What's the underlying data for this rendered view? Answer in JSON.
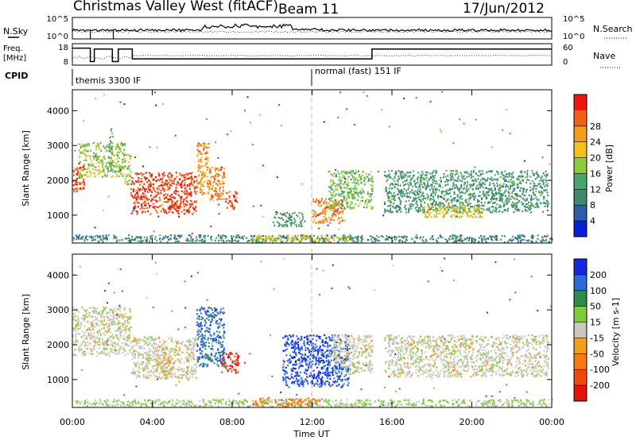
{
  "header": {
    "title": "Christmas Valley West (fitACF)",
    "beam": "Beam 11",
    "date": "17/Jun/2012"
  },
  "noise_panel": {
    "left_label": "N.Sky",
    "right_label": "N.Search",
    "left_ticks": [
      "10^5",
      "10^0"
    ],
    "right_ticks": [
      "10^5",
      "10^0"
    ]
  },
  "freq_panel": {
    "left_label_1": "Freq.",
    "left_label_2": "[MHz]",
    "right_label": "Nave",
    "left_ticks": [
      "18",
      "8"
    ],
    "right_ticks": [
      "60",
      "0"
    ],
    "freq_segments": [
      {
        "start_h": 0.0,
        "end_h": 0.9,
        "mhz": 16.5
      },
      {
        "start_h": 0.9,
        "end_h": 1.1,
        "mhz": 9.0
      },
      {
        "start_h": 1.1,
        "end_h": 2.0,
        "mhz": 16.0
      },
      {
        "start_h": 2.0,
        "end_h": 2.3,
        "mhz": 9.0
      },
      {
        "start_h": 2.3,
        "end_h": 3.0,
        "mhz": 16.0
      },
      {
        "start_h": 3.0,
        "end_h": 15.0,
        "mhz": 10.5
      },
      {
        "start_h": 15.0,
        "end_h": 24.0,
        "mhz": 16.0
      }
    ]
  },
  "cpid": {
    "label": "CPID",
    "segments": [
      {
        "start_h": 0.0,
        "end_h": 12.0,
        "text": "themis 3300 IF"
      },
      {
        "start_h": 12.0,
        "end_h": 24.0,
        "text": "normal (fast) 151 IF"
      }
    ]
  },
  "time_axis": {
    "label": "Time UT",
    "ticks": [
      "00:00",
      "04:00",
      "08:00",
      "12:00",
      "16:00",
      "20:00",
      "00:00"
    ],
    "range_hours": [
      0,
      24
    ]
  },
  "colors": {
    "power_scale": [
      "#0a1fd8",
      "#2a5ea8",
      "#3f8a6e",
      "#4aa56a",
      "#8ccc3a",
      "#f2c21a",
      "#f59a1a",
      "#f26014",
      "#e8190f"
    ],
    "velocity_scale": [
      "#1428e0",
      "#2c6ad8",
      "#2d8c4a",
      "#7ccc3c",
      "#c8c8c0",
      "#f0a01e",
      "#f57a16",
      "#f04a10",
      "#e0140e"
    ]
  },
  "chart_data": [
    {
      "type": "heatmap",
      "name": "power",
      "ylabel": "Slant Range [km]",
      "xlabel": "",
      "x_range_hours": [
        0,
        24
      ],
      "ylim": [
        200,
        4600
      ],
      "yticks": [
        1000,
        2000,
        3000,
        4000
      ],
      "colorbar": {
        "label": "Power [dB]",
        "ticks": [
          4,
          8,
          12,
          16,
          20,
          24,
          28
        ],
        "range": [
          0,
          32
        ]
      },
      "regions": [
        {
          "t0": 0.0,
          "t1": 0.6,
          "r0": 1700,
          "r1": 2500,
          "level": 30
        },
        {
          "t0": 0.3,
          "t1": 2.6,
          "r0": 2100,
          "r1": 3100,
          "level": 16
        },
        {
          "t0": 2.6,
          "t1": 2.9,
          "r0": 1900,
          "r1": 2800,
          "level": 16
        },
        {
          "t0": 1.8,
          "t1": 2.0,
          "r0": 2400,
          "r1": 3500,
          "level": 14
        },
        {
          "t0": 2.9,
          "t1": 6.2,
          "r0": 1050,
          "r1": 2250,
          "level": 30
        },
        {
          "t0": 6.2,
          "t1": 6.8,
          "r0": 1600,
          "r1": 3100,
          "level": 24
        },
        {
          "t0": 6.8,
          "t1": 7.6,
          "r0": 1400,
          "r1": 2400,
          "level": 26
        },
        {
          "t0": 7.6,
          "t1": 8.2,
          "r0": 1200,
          "r1": 1700,
          "level": 30
        },
        {
          "t0": 10.0,
          "t1": 11.6,
          "r0": 700,
          "r1": 1100,
          "level": 10
        },
        {
          "t0": 12.0,
          "t1": 13.6,
          "r0": 800,
          "r1": 1500,
          "level": 26
        },
        {
          "t0": 12.8,
          "t1": 15.0,
          "r0": 1200,
          "r1": 2300,
          "level": 14
        },
        {
          "t0": 15.6,
          "t1": 23.8,
          "r0": 1100,
          "r1": 2300,
          "level": 10
        },
        {
          "t0": 17.5,
          "t1": 20.5,
          "r0": 950,
          "r1": 1300,
          "level": 20
        },
        {
          "t0": 0.0,
          "t1": 24.0,
          "r0": 250,
          "r1": 450,
          "level": 8
        },
        {
          "t0": 9.0,
          "t1": 14.0,
          "r0": 250,
          "r1": 450,
          "level": 20
        }
      ]
    },
    {
      "type": "heatmap",
      "name": "velocity",
      "ylabel": "Slant Range [km]",
      "xlabel": "Time UT",
      "x_range_hours": [
        0,
        24
      ],
      "ylim": [
        200,
        4600
      ],
      "yticks": [
        1000,
        2000,
        3000,
        4000
      ],
      "colorbar": {
        "label": "Velocity [m s-1]",
        "ticks": [
          200,
          100,
          50,
          15,
          -15,
          -50,
          -100,
          -200
        ],
        "range": [
          -250,
          250
        ]
      },
      "regions": [
        {
          "t0": 0.0,
          "t1": 2.9,
          "r0": 1700,
          "r1": 3100,
          "velocity": 0
        },
        {
          "t0": 2.9,
          "t1": 6.2,
          "r0": 1050,
          "r1": 2250,
          "velocity": 0
        },
        {
          "t0": 4.2,
          "t1": 5.0,
          "r0": 1200,
          "r1": 2000,
          "velocity": -40
        },
        {
          "t0": 6.2,
          "t1": 7.6,
          "r0": 1400,
          "r1": 3100,
          "velocity": 180
        },
        {
          "t0": 7.4,
          "t1": 8.3,
          "r0": 1200,
          "r1": 1800,
          "velocity": -220
        },
        {
          "t0": 10.5,
          "t1": 13.8,
          "r0": 800,
          "r1": 2300,
          "velocity": 210
        },
        {
          "t0": 13.0,
          "t1": 15.0,
          "r0": 1200,
          "r1": 2300,
          "velocity": 0
        },
        {
          "t0": 15.6,
          "t1": 23.8,
          "r0": 1100,
          "r1": 2300,
          "velocity": 0
        },
        {
          "t0": 0.0,
          "t1": 24.0,
          "r0": 250,
          "r1": 450,
          "velocity": 40
        },
        {
          "t0": 9.0,
          "t1": 12.5,
          "r0": 250,
          "r1": 500,
          "velocity": -120
        }
      ]
    }
  ]
}
